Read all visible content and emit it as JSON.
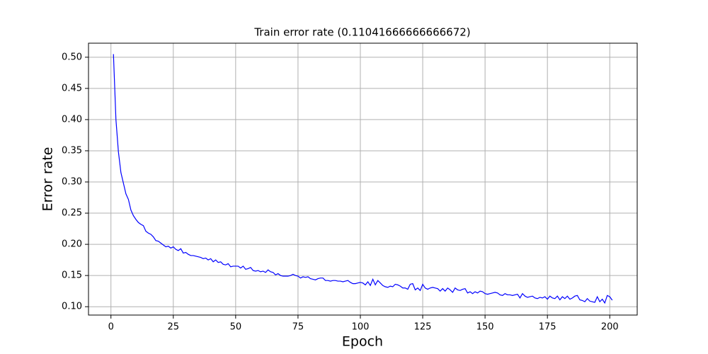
{
  "chart_data": {
    "type": "line",
    "title": "Train error rate (0.11041666666666672)",
    "x_label": "Epoch",
    "y_label": "Error rate",
    "x": [
      1,
      2,
      3,
      4,
      5,
      6,
      7,
      8,
      9,
      10,
      11,
      12,
      13,
      14,
      15,
      16,
      17,
      18,
      19,
      20,
      21,
      22,
      23,
      24,
      25,
      26,
      27,
      28,
      29,
      30,
      31,
      32,
      33,
      34,
      35,
      36,
      37,
      38,
      39,
      40,
      41,
      42,
      43,
      44,
      45,
      46,
      47,
      48,
      49,
      50,
      51,
      52,
      53,
      54,
      55,
      56,
      57,
      58,
      59,
      60,
      61,
      62,
      63,
      64,
      65,
      66,
      67,
      68,
      69,
      70,
      71,
      72,
      73,
      74,
      75,
      76,
      77,
      78,
      79,
      80,
      81,
      82,
      83,
      84,
      85,
      86,
      87,
      88,
      89,
      90,
      91,
      92,
      93,
      94,
      95,
      96,
      97,
      98,
      99,
      100,
      101,
      102,
      103,
      104,
      105,
      106,
      107,
      108,
      109,
      110,
      111,
      112,
      113,
      114,
      115,
      116,
      117,
      118,
      119,
      120,
      121,
      122,
      123,
      124,
      125,
      126,
      127,
      128,
      129,
      130,
      131,
      132,
      133,
      134,
      135,
      136,
      137,
      138,
      139,
      140,
      141,
      142,
      143,
      144,
      145,
      146,
      147,
      148,
      149,
      150,
      151,
      152,
      153,
      154,
      155,
      156,
      157,
      158,
      159,
      160,
      161,
      162,
      163,
      164,
      165,
      166,
      167,
      168,
      169,
      170,
      171,
      172,
      173,
      174,
      175,
      176,
      177,
      178,
      179,
      180,
      181,
      182,
      183,
      184,
      185,
      186,
      187,
      188,
      189,
      190,
      191,
      192,
      193,
      194,
      195,
      196,
      197,
      198,
      199,
      200,
      201
    ],
    "series": [
      {
        "color": "#0000ff",
        "values": [
          0.505,
          0.4,
          0.348,
          0.315,
          0.298,
          0.281,
          0.272,
          0.255,
          0.246,
          0.24,
          0.235,
          0.232,
          0.23,
          0.221,
          0.218,
          0.216,
          0.212,
          0.206,
          0.205,
          0.202,
          0.199,
          0.196,
          0.197,
          0.194,
          0.196,
          0.192,
          0.19,
          0.193,
          0.186,
          0.187,
          0.184,
          0.182,
          0.182,
          0.181,
          0.18,
          0.179,
          0.177,
          0.178,
          0.175,
          0.177,
          0.172,
          0.175,
          0.171,
          0.172,
          0.168,
          0.167,
          0.169,
          0.164,
          0.165,
          0.165,
          0.165,
          0.162,
          0.165,
          0.16,
          0.161,
          0.163,
          0.158,
          0.157,
          0.158,
          0.156,
          0.157,
          0.155,
          0.159,
          0.156,
          0.155,
          0.151,
          0.153,
          0.15,
          0.149,
          0.149,
          0.149,
          0.15,
          0.152,
          0.15,
          0.149,
          0.146,
          0.148,
          0.147,
          0.148,
          0.145,
          0.144,
          0.143,
          0.145,
          0.146,
          0.146,
          0.142,
          0.142,
          0.141,
          0.142,
          0.142,
          0.141,
          0.141,
          0.14,
          0.141,
          0.142,
          0.139,
          0.137,
          0.137,
          0.138,
          0.139,
          0.138,
          0.135,
          0.14,
          0.134,
          0.144,
          0.135,
          0.142,
          0.138,
          0.134,
          0.132,
          0.131,
          0.133,
          0.132,
          0.136,
          0.135,
          0.133,
          0.13,
          0.13,
          0.128,
          0.136,
          0.137,
          0.127,
          0.13,
          0.126,
          0.136,
          0.13,
          0.128,
          0.13,
          0.131,
          0.13,
          0.129,
          0.125,
          0.129,
          0.125,
          0.13,
          0.127,
          0.123,
          0.13,
          0.127,
          0.126,
          0.128,
          0.129,
          0.122,
          0.124,
          0.121,
          0.124,
          0.122,
          0.125,
          0.124,
          0.121,
          0.12,
          0.121,
          0.122,
          0.123,
          0.122,
          0.119,
          0.118,
          0.121,
          0.119,
          0.119,
          0.118,
          0.119,
          0.12,
          0.114,
          0.121,
          0.117,
          0.115,
          0.116,
          0.117,
          0.114,
          0.113,
          0.115,
          0.114,
          0.116,
          0.112,
          0.117,
          0.114,
          0.113,
          0.117,
          0.111,
          0.116,
          0.113,
          0.117,
          0.112,
          0.114,
          0.117,
          0.118,
          0.111,
          0.11,
          0.108,
          0.113,
          0.109,
          0.108,
          0.107,
          0.116,
          0.108,
          0.112,
          0.106,
          0.118,
          0.116,
          0.11041666666666672
        ]
      }
    ],
    "xlim": [
      -9,
      211
    ],
    "ylim": [
      0.0866,
      0.5225
    ],
    "xticks": [
      0,
      25,
      50,
      75,
      100,
      125,
      150,
      175,
      200
    ],
    "yticks": [
      {
        "value": 0.1,
        "label": "0.10"
      },
      0.15,
      {
        "value": 0.2,
        "label": "0.20"
      },
      0.25,
      {
        "value": 0.3,
        "label": "0.30"
      },
      0.35,
      {
        "value": 0.4,
        "label": "0.40"
      },
      0.45,
      {
        "value": 0.5,
        "label": "0.50"
      }
    ],
    "grid": true
  }
}
